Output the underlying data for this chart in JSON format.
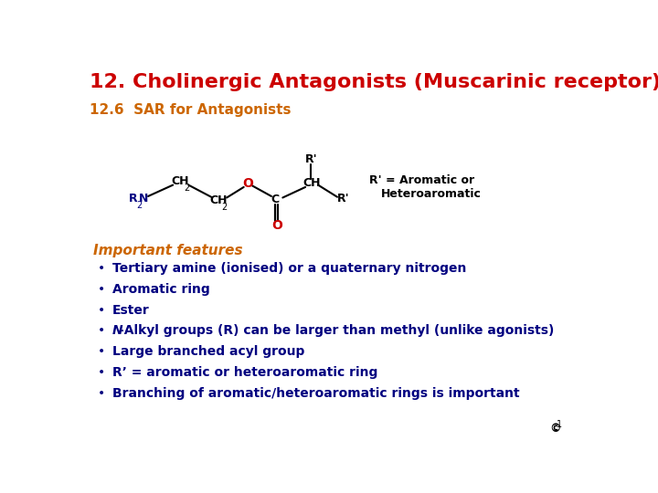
{
  "title": "12. Cholinergic Antagonists (Muscarinic receptor)",
  "title_color": "#CC0000",
  "subtitle": "12.6  SAR for Antagonists",
  "subtitle_color": "#CC6600",
  "bg_color": "#FFFFFF",
  "important_label": "Important features",
  "important_color": "#CC6600",
  "bullet_color": "#000080",
  "bullets": [
    "Tertiary amine (ionised) or a quaternary nitrogen",
    "Aromatic ring",
    "Ester",
    "-Alkyl groups (R) can be larger than methyl (unlike agonists)",
    "Large branched acyl group",
    "R’ = aromatic or heteroaromatic ring",
    "Branching of aromatic/heteroaromatic rings is important"
  ],
  "struct_black": "#000000",
  "struct_red": "#CC0000",
  "struct_blue": "#000080"
}
